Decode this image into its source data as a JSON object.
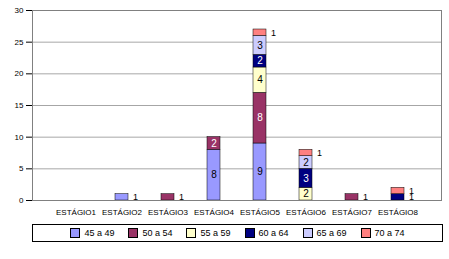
{
  "chart_data": {
    "type": "bar",
    "stacked": true,
    "data_labels": true,
    "grid": true,
    "legend": "bottom",
    "categories": [
      "ESTÁGIO1",
      "ESTÁGIO2",
      "ESTÁGIO3",
      "ESTÁGIO4",
      "ESTÁGIO5",
      "ESTÁGIO6",
      "ESTÁGIO7",
      "ESTÁGIO8"
    ],
    "ylim": [
      0,
      30
    ],
    "yticks": [
      0,
      5,
      10,
      15,
      20,
      25,
      30
    ],
    "series": [
      {
        "name": "45 a 49",
        "color": "#9999ff",
        "values": [
          null,
          1,
          null,
          8,
          9,
          null,
          null,
          null
        ]
      },
      {
        "name": "50 a 54",
        "color": "#993366",
        "values": [
          null,
          null,
          1,
          2,
          8,
          null,
          1,
          null
        ]
      },
      {
        "name": "55 a 59",
        "color": "#ffffcc",
        "values": [
          null,
          null,
          null,
          null,
          4,
          2,
          null,
          null
        ]
      },
      {
        "name": "60 a 64",
        "color": "#000080",
        "values": [
          null,
          null,
          null,
          null,
          2,
          3,
          null,
          1
        ]
      },
      {
        "name": "65 a 69",
        "color": "#ccccff",
        "values": [
          null,
          null,
          null,
          null,
          3,
          2,
          null,
          null
        ]
      },
      {
        "name": "70 a 74",
        "color": "#ff8080",
        "values": [
          null,
          null,
          null,
          null,
          1,
          1,
          null,
          1
        ]
      }
    ]
  }
}
